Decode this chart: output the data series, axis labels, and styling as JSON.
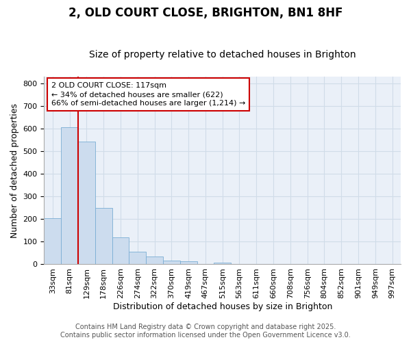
{
  "title_line1": "2, OLD COURT CLOSE, BRIGHTON, BN1 8HF",
  "title_line2": "Size of property relative to detached houses in Brighton",
  "xlabel": "Distribution of detached houses by size in Brighton",
  "ylabel": "Number of detached properties",
  "categories": [
    "33sqm",
    "81sqm",
    "129sqm",
    "178sqm",
    "226sqm",
    "274sqm",
    "322sqm",
    "370sqm",
    "419sqm",
    "467sqm",
    "515sqm",
    "563sqm",
    "611sqm",
    "660sqm",
    "708sqm",
    "756sqm",
    "804sqm",
    "852sqm",
    "901sqm",
    "949sqm",
    "997sqm"
  ],
  "values": [
    203,
    607,
    543,
    250,
    120,
    55,
    35,
    18,
    12,
    0,
    8,
    0,
    0,
    0,
    0,
    0,
    0,
    0,
    0,
    0,
    0
  ],
  "bar_color": "#ccdcee",
  "bar_edge_color": "#7aadd4",
  "grid_color": "#d0dce8",
  "background_color": "#eaf0f8",
  "vline_x_idx": 2,
  "vline_color": "#cc0000",
  "annotation_text": "2 OLD COURT CLOSE: 117sqm\n← 34% of detached houses are smaller (622)\n66% of semi-detached houses are larger (1,214) →",
  "annotation_box_color": "#cc0000",
  "ylim": [
    0,
    830
  ],
  "yticks": [
    0,
    100,
    200,
    300,
    400,
    500,
    600,
    700,
    800
  ],
  "footer_line1": "Contains HM Land Registry data © Crown copyright and database right 2025.",
  "footer_line2": "Contains public sector information licensed under the Open Government Licence v3.0.",
  "title1_fontsize": 12,
  "title2_fontsize": 10,
  "axis_label_fontsize": 9,
  "tick_fontsize": 8,
  "footer_fontsize": 7,
  "annotation_fontsize": 8
}
